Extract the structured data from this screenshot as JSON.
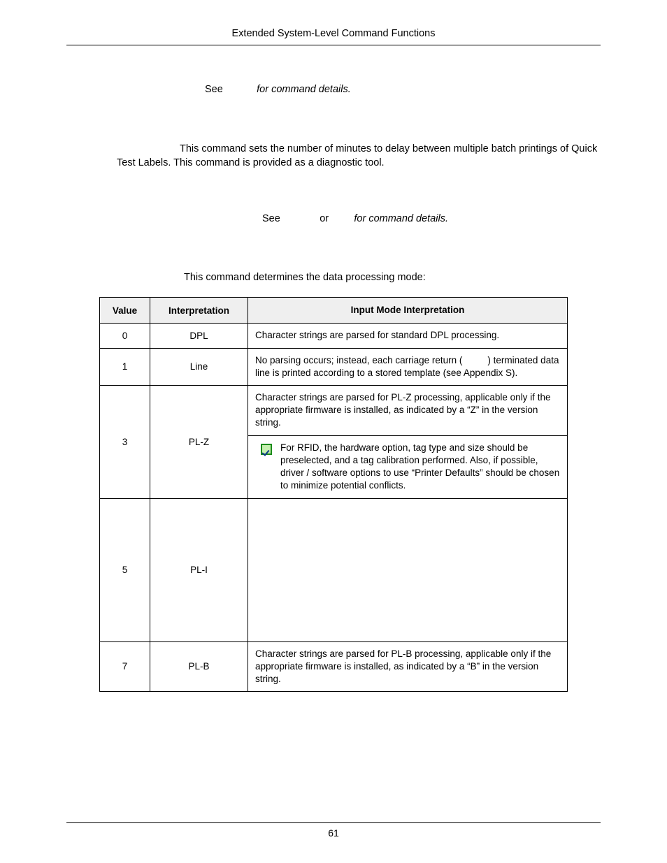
{
  "header": {
    "title": "Extended System-Level Command Functions"
  },
  "line_see1": {
    "see": "See",
    "tail": "for command details."
  },
  "delay_paragraph": {
    "lead_blank": "",
    "text1": "This command sets the number of minutes to delay between multiple batch printings of Quick Test Labels.  This command is provided as a diagnostic tool."
  },
  "line_see2": {
    "see": "See",
    "or": "or",
    "tail": "for command details."
  },
  "intro_mode": "This command determines the data processing mode:",
  "table": {
    "headers": [
      "Value",
      "Interpretation",
      "Input Mode Interpretation"
    ],
    "rows": [
      {
        "value": "0",
        "interp": "DPL",
        "desc": "Character strings are parsed for standard DPL processing."
      },
      {
        "value": "1",
        "interp": "Line",
        "desc_a": "No parsing occurs; instead, each carriage return (",
        "desc_b": ") terminated data line is printed according to a stored template (see Appendix S)."
      },
      {
        "value": "3",
        "interp": "PL-Z",
        "desc_top": "Character strings are parsed for PL-Z processing, applicable only if the appropriate firmware is installed, as indicated by a “Z” in the version string.",
        "desc_note": "For RFID, the hardware option, tag type and size should be preselected, and a tag calibration performed. Also, if possible, driver / software options to use “Printer Defaults” should be chosen to minimize potential conflicts."
      },
      {
        "value": "5",
        "interp": "PL-I",
        "desc": ""
      },
      {
        "value": "7",
        "interp": "PL-B",
        "desc": "Character strings are parsed for PL-B processing, applicable only if the appropriate firmware is installed, as indicated by a “B” in the version string."
      }
    ]
  },
  "footer": {
    "page_number": "61"
  },
  "colors": {
    "header_bg": "#efefef",
    "note_border": "#1a8a1a",
    "note_fill": "#c7f0b0"
  }
}
